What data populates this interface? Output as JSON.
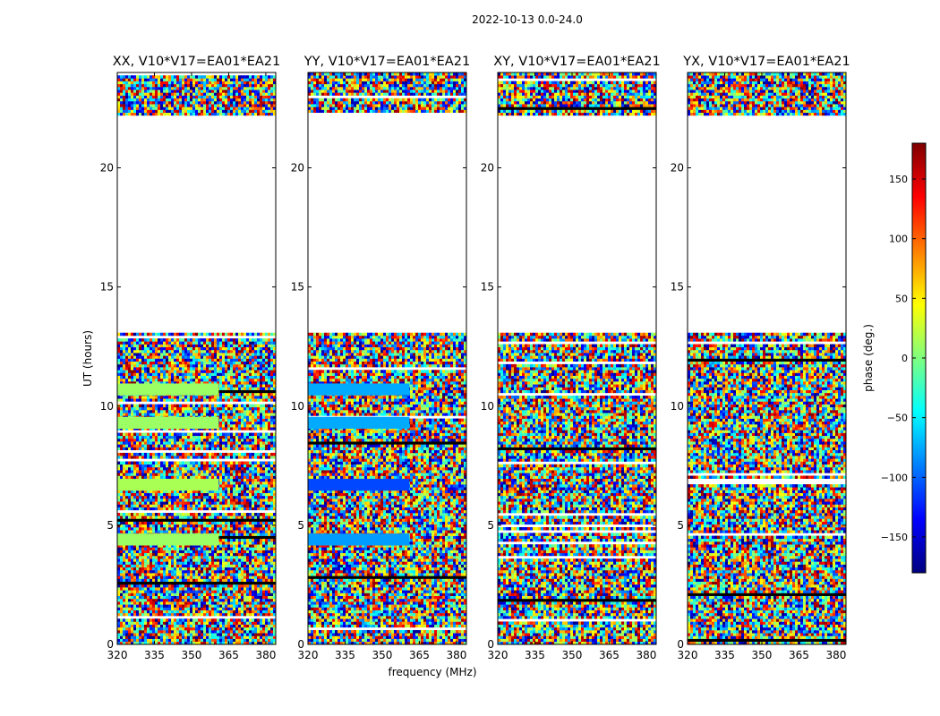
{
  "figure_title": "2022-10-13 0.0-24.0",
  "colorbar": {
    "label": "phase (deg.)",
    "range": [
      -180,
      180
    ],
    "ticks": [
      -150,
      -100,
      -50,
      0,
      50,
      100,
      150
    ],
    "tick_labels": [
      "−150",
      "−100",
      "−50",
      "0",
      "50",
      "100",
      "150"
    ],
    "colormap": "jet",
    "colors": [
      "#00007f",
      "#0000ff",
      "#007fff",
      "#00ffff",
      "#7fff7f",
      "#ffff00",
      "#ff7f00",
      "#ff0000",
      "#7f0000"
    ]
  },
  "chart_data": [
    {
      "type": "heatmap",
      "title": "XX, V10*V17=EA01*EA21",
      "polarization": "XX",
      "xlabel": "",
      "ylabel": "UT (hours)",
      "xlim": [
        320,
        384
      ],
      "ylim": [
        0,
        24
      ],
      "xticks": [
        320,
        335,
        350,
        365,
        380
      ],
      "yticks": [
        0,
        5,
        10,
        15,
        20
      ],
      "value": "phase (deg.)",
      "data_gap_hours": [
        13.0,
        22.2
      ],
      "coherent_bands": [
        {
          "ut_start": 10.45,
          "ut_end": 10.95,
          "freq_end": 361,
          "phase_deg": 10
        },
        {
          "ut_start": 9.05,
          "ut_end": 9.55,
          "freq_end": 361,
          "phase_deg": 10
        },
        {
          "ut_start": 6.45,
          "ut_end": 6.95,
          "freq_end": 361,
          "phase_deg": 15
        },
        {
          "ut_start": 4.15,
          "ut_end": 4.65,
          "freq_end": 361,
          "phase_deg": 10
        }
      ]
    },
    {
      "type": "heatmap",
      "title": "YY, V10*V17=EA01*EA21",
      "polarization": "YY",
      "xlabel": "frequency (MHz)",
      "ylabel": "",
      "xlim": [
        320,
        384
      ],
      "ylim": [
        0,
        24
      ],
      "xticks": [
        320,
        335,
        350,
        365,
        380
      ],
      "yticks": [
        0,
        5,
        10,
        15,
        20
      ],
      "value": "phase (deg.)",
      "data_gap_hours": [
        13.0,
        22.2
      ],
      "coherent_bands": [
        {
          "ut_start": 10.45,
          "ut_end": 10.95,
          "freq_end": 361,
          "phase_deg": -75
        },
        {
          "ut_start": 9.05,
          "ut_end": 9.55,
          "freq_end": 361,
          "phase_deg": -75
        },
        {
          "ut_start": 6.45,
          "ut_end": 6.95,
          "freq_end": 361,
          "phase_deg": -110
        },
        {
          "ut_start": 4.15,
          "ut_end": 4.65,
          "freq_end": 361,
          "phase_deg": -80
        }
      ]
    },
    {
      "type": "heatmap",
      "title": "XY, V10*V17=EA01*EA21",
      "polarization": "XY",
      "xlabel": "",
      "ylabel": "",
      "xlim": [
        320,
        384
      ],
      "ylim": [
        0,
        24
      ],
      "xticks": [
        320,
        335,
        350,
        365,
        380
      ],
      "yticks": [
        0,
        5,
        10,
        15,
        20
      ],
      "value": "phase (deg.)",
      "data_gap_hours": [
        13.0,
        22.2
      ],
      "coherent_bands": []
    },
    {
      "type": "heatmap",
      "title": "YX, V10*V17=EA01*EA21",
      "polarization": "YX",
      "xlabel": "",
      "ylabel": "",
      "xlim": [
        320,
        384
      ],
      "ylim": [
        0,
        24
      ],
      "xticks": [
        320,
        335,
        350,
        365,
        380
      ],
      "yticks": [
        0,
        5,
        10,
        15,
        20
      ],
      "value": "phase (deg.)",
      "data_gap_hours": [
        13.0,
        22.2
      ],
      "coherent_bands": []
    }
  ]
}
